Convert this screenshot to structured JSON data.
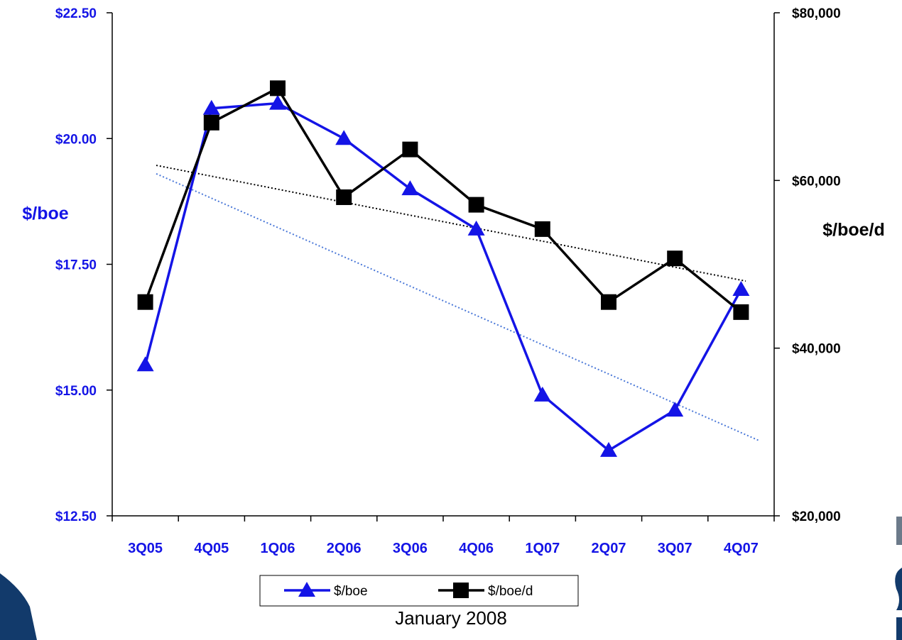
{
  "footer": "January 2008",
  "colors": {
    "boe": "#1414e6",
    "boe_trend": "#4a78d8",
    "boed": "#000000",
    "decor_blue": "#123a6b",
    "decor_gray": "#6c7a8a"
  },
  "chart_data": {
    "type": "line",
    "categories": [
      "3Q05",
      "4Q05",
      "1Q06",
      "2Q06",
      "3Q06",
      "4Q06",
      "1Q07",
      "2Q07",
      "3Q07",
      "4Q07"
    ],
    "y_left": {
      "title": "$/boe",
      "range": [
        12.5,
        22.5
      ],
      "ticks": [
        12.5,
        15.0,
        17.5,
        20.0,
        22.5
      ],
      "tick_labels": [
        "$12.50",
        "$15.00",
        "$17.50",
        "$20.00",
        "$22.50"
      ]
    },
    "y_right": {
      "title": "$/boe/d",
      "range": [
        20000,
        80000
      ],
      "ticks": [
        20000,
        40000,
        60000,
        80000
      ],
      "tick_labels": [
        "$20,000",
        "$40,000",
        "$60,000",
        "$80,000"
      ]
    },
    "series": [
      {
        "name": "$/boe",
        "axis": "left",
        "marker": "triangle",
        "values": [
          15.5,
          20.6,
          20.7,
          20.0,
          19.0,
          18.2,
          14.9,
          13.8,
          14.6,
          17.0
        ],
        "trend": [
          19.3,
          14.0
        ]
      },
      {
        "name": "$/boe/d",
        "axis": "right",
        "marker": "square",
        "values": [
          45500,
          66900,
          71000,
          58000,
          63700,
          57100,
          54200,
          45500,
          50700,
          44300
        ],
        "trend": [
          61800,
          48000
        ]
      }
    ],
    "legend": {
      "position": "bottom",
      "items": [
        "$/boe",
        "$/boe/d"
      ]
    },
    "grid": false
  }
}
